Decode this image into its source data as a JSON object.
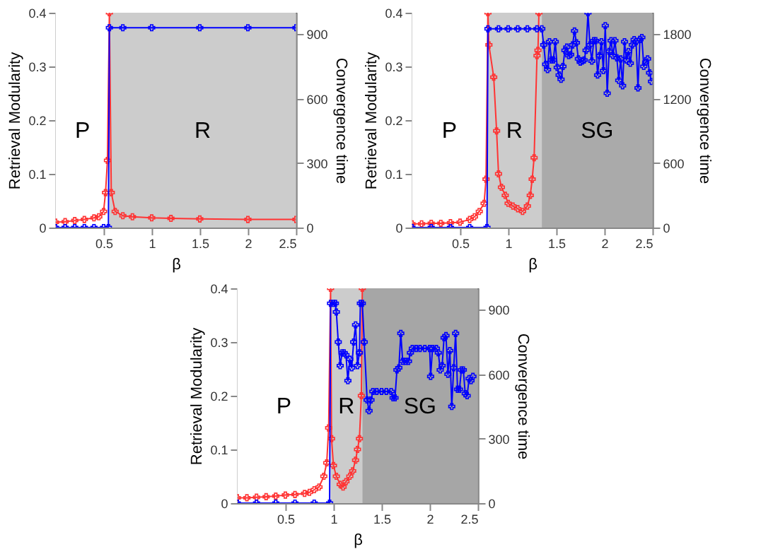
{
  "chart_data": [
    {
      "type": "line",
      "xlabel": "β",
      "ylabel": "Retrieval Modularity",
      "y2label": "Convergence time",
      "marker": "cross",
      "line_style": "solid",
      "grid": false,
      "xlim": [
        0,
        2.5
      ],
      "xticks": [
        0.5,
        1,
        1.5,
        2,
        2.5
      ],
      "ylim": [
        0,
        0.4
      ],
      "yticks": [
        0,
        0.1,
        0.2,
        0.3,
        0.4
      ],
      "y2lim": [
        0,
        1000
      ],
      "y2ticks": [
        0,
        300,
        600,
        900
      ],
      "bands": [
        {
          "axis": "x",
          "from": 0,
          "to": 0.56,
          "label": "P",
          "color": "#ffffff"
        },
        {
          "axis": "x",
          "from": 0.56,
          "to": 2.5,
          "label": "R",
          "color": "#cccccc"
        }
      ],
      "series": [
        {
          "color": "#ff3333",
          "x": [
            0,
            0.1,
            0.2,
            0.3,
            0.4,
            0.45,
            0.5,
            0.52,
            0.54,
            0.56,
            0.58,
            0.62,
            0.7,
            0.8,
            1.0,
            1.2,
            1.5,
            2.0,
            2.5
          ],
          "values": [
            0.01,
            0.011,
            0.013,
            0.015,
            0.018,
            0.02,
            0.03,
            0.065,
            0.125,
            0.4,
            0.065,
            0.03,
            0.022,
            0.02,
            0.018,
            0.017,
            0.016,
            0.015,
            0.015
          ]
        },
        {
          "color": "#0000ff",
          "axis": "y2",
          "x": [
            0,
            0.1,
            0.2,
            0.3,
            0.4,
            0.5,
            0.55,
            0.56,
            0.7,
            1.0,
            1.5,
            2.0,
            2.5
          ],
          "values": [
            0,
            0,
            0,
            0,
            0,
            0,
            0,
            930,
            930,
            930,
            930,
            930,
            930
          ]
        }
      ]
    },
    {
      "type": "line",
      "xlabel": "β",
      "ylabel": "Retrieval Modularity",
      "y2label": "Convergence time",
      "marker": "cross",
      "line_style": "solid",
      "grid": false,
      "xlim": [
        0,
        2.5
      ],
      "xticks": [
        0.5,
        1,
        1.5,
        2,
        2.5
      ],
      "ylim": [
        0,
        0.4
      ],
      "yticks": [
        0,
        0.1,
        0.2,
        0.3,
        0.4
      ],
      "y2lim": [
        0,
        2000
      ],
      "y2ticks": [
        0,
        600,
        1200,
        1800
      ],
      "bands": [
        {
          "axis": "x",
          "from": 0,
          "to": 0.78,
          "label": "P",
          "color": "#ffffff"
        },
        {
          "axis": "x",
          "from": 0.78,
          "to": 1.35,
          "label": "R",
          "color": "#cccccc"
        },
        {
          "axis": "x",
          "from": 1.35,
          "to": 2.5,
          "label": "SG",
          "color": "#aaaaaa"
        }
      ],
      "series": [
        {
          "color": "#ff3333",
          "x": [
            0,
            0.1,
            0.2,
            0.3,
            0.4,
            0.5,
            0.6,
            0.65,
            0.7,
            0.75,
            0.77,
            0.79,
            0.8,
            0.85,
            0.88,
            0.9,
            0.93,
            0.97,
            1.0,
            1.05,
            1.1,
            1.15,
            1.2,
            1.23,
            1.25,
            1.27,
            1.3,
            1.31,
            1.32
          ],
          "values": [
            0.007,
            0.007,
            0.008,
            0.008,
            0.009,
            0.01,
            0.015,
            0.02,
            0.03,
            0.045,
            0.09,
            0.4,
            0.34,
            0.28,
            0.18,
            0.1,
            0.075,
            0.06,
            0.045,
            0.04,
            0.035,
            0.03,
            0.04,
            0.06,
            0.09,
            0.13,
            0.32,
            0.33,
            0.4
          ]
        },
        {
          "color": "#0000ff",
          "axis": "y2",
          "x": [
            0,
            0.2,
            0.4,
            0.6,
            0.78,
            0.79,
            0.9,
            1.0,
            1.1,
            1.2,
            1.3,
            1.35,
            1.37,
            1.39,
            1.41,
            1.43,
            1.45,
            1.47,
            1.49,
            1.51,
            1.53,
            1.55,
            1.57,
            1.59,
            1.61,
            1.63,
            1.65,
            1.67,
            1.69,
            1.71,
            1.73,
            1.75,
            1.77,
            1.79,
            1.81,
            1.83,
            1.85,
            1.87,
            1.89,
            1.91,
            1.93,
            1.95,
            1.97,
            1.99,
            2.01,
            2.03,
            2.05,
            2.07,
            2.09,
            2.11,
            2.13,
            2.15,
            2.17,
            2.19,
            2.21,
            2.23,
            2.25,
            2.27,
            2.29,
            2.31,
            2.33,
            2.35,
            2.37,
            2.39,
            2.41,
            2.43,
            2.45,
            2.47,
            2.49
          ],
          "values": [
            0,
            0,
            0,
            0,
            0,
            1850,
            1850,
            1850,
            1850,
            1850,
            1850,
            1850,
            1700,
            1520,
            1470,
            1730,
            1560,
            1560,
            1730,
            1490,
            1420,
            1380,
            1500,
            1650,
            1680,
            1600,
            1610,
            1700,
            1830,
            1720,
            1570,
            1540,
            1550,
            1560,
            1650,
            2000,
            1700,
            1550,
            1740,
            1740,
            1420,
            1600,
            1730,
            1460,
            1880,
            1250,
            1640,
            1740,
            1600,
            1740,
            1580,
            1370,
            1570,
            1320,
            1730,
            1560,
            1640,
            1530,
            1700,
            1750,
            1730,
            1300,
            1750,
            1770,
            1500,
            1540,
            1570,
            1440,
            1360
          ]
        }
      ]
    },
    {
      "type": "line",
      "xlabel": "β",
      "ylabel": "Retrieval Modularity",
      "y2label": "Convergence time",
      "marker": "cross",
      "line_style": "solid",
      "grid": false,
      "xlim": [
        0,
        2.5
      ],
      "xticks": [
        0.5,
        1,
        1.5,
        2,
        2.5
      ],
      "ylim": [
        0,
        0.4
      ],
      "yticks": [
        0,
        0.1,
        0.2,
        0.3,
        0.4
      ],
      "y2lim": [
        0,
        1000
      ],
      "y2ticks": [
        0,
        300,
        600,
        900
      ],
      "bands": [
        {
          "axis": "x",
          "from": 0,
          "to": 0.97,
          "label": "P",
          "color": "#ffffff"
        },
        {
          "axis": "x",
          "from": 0.97,
          "to": 1.3,
          "label": "R",
          "color": "#cccccc"
        },
        {
          "axis": "x",
          "from": 1.3,
          "to": 2.5,
          "label": "SG",
          "color": "#a6a6a6"
        }
      ],
      "series": [
        {
          "color": "#ff3333",
          "x": [
            0,
            0.1,
            0.2,
            0.3,
            0.4,
            0.5,
            0.6,
            0.7,
            0.75,
            0.8,
            0.85,
            0.9,
            0.93,
            0.95,
            0.97,
            0.98,
            1.0,
            1.03,
            1.07,
            1.1,
            1.13,
            1.17,
            1.2,
            1.23,
            1.25,
            1.27,
            1.29,
            1.3
          ],
          "values": [
            0.01,
            0.01,
            0.011,
            0.012,
            0.013,
            0.015,
            0.016,
            0.018,
            0.02,
            0.025,
            0.03,
            0.05,
            0.075,
            0.14,
            0.4,
            0.12,
            0.07,
            0.05,
            0.035,
            0.03,
            0.04,
            0.05,
            0.06,
            0.08,
            0.1,
            0.12,
            0.2,
            0.4
          ]
        },
        {
          "color": "#0000ff",
          "axis": "y2",
          "x": [
            0,
            0.2,
            0.4,
            0.6,
            0.8,
            0.96,
            0.97,
            1.0,
            1.02,
            1.03,
            1.05,
            1.07,
            1.09,
            1.11,
            1.13,
            1.15,
            1.17,
            1.19,
            1.21,
            1.23,
            1.25,
            1.27,
            1.28,
            1.3,
            1.32,
            1.35,
            1.37,
            1.39,
            1.41,
            1.45,
            1.5,
            1.55,
            1.6,
            1.62,
            1.64,
            1.66,
            1.68,
            1.7,
            1.72,
            1.75,
            1.78,
            1.8,
            1.82,
            1.86,
            1.9,
            1.95,
            2.0,
            2.01,
            2.03,
            2.07,
            2.09,
            2.11,
            2.13,
            2.15,
            2.17,
            2.19,
            2.21,
            2.23,
            2.25,
            2.27,
            2.29,
            2.31,
            2.33,
            2.35,
            2.37,
            2.39,
            2.41,
            2.43,
            2.45
          ],
          "values": [
            0,
            0,
            0,
            0,
            0,
            0,
            930,
            930,
            930,
            890,
            750,
            640,
            700,
            700,
            690,
            570,
            670,
            630,
            750,
            830,
            640,
            700,
            930,
            930,
            750,
            480,
            430,
            480,
            520,
            520,
            520,
            520,
            520,
            490,
            490,
            620,
            630,
            790,
            660,
            660,
            660,
            700,
            720,
            720,
            720,
            720,
            720,
            590,
            720,
            720,
            700,
            620,
            640,
            770,
            780,
            600,
            710,
            450,
            630,
            790,
            530,
            530,
            620,
            620,
            510,
            500,
            580,
            570,
            590
          ]
        }
      ]
    }
  ]
}
